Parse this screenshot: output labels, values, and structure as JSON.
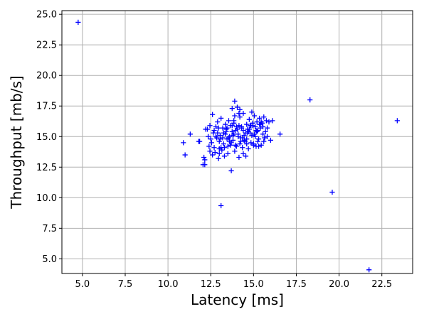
{
  "chart_data": {
    "type": "scatter",
    "title": "",
    "xlabel": "Latency [ms]",
    "ylabel": "Throughput [mb/s]",
    "xlim": [
      3.8,
      24.3
    ],
    "ylim": [
      3.8,
      25.3
    ],
    "xticks": [
      5.0,
      7.5,
      10.0,
      12.5,
      15.0,
      17.5,
      20.0,
      22.5
    ],
    "xtick_labels": [
      "5.0",
      "7.5",
      "10.0",
      "12.5",
      "15.0",
      "17.5",
      "20.0",
      "22.5"
    ],
    "yticks": [
      5.0,
      7.5,
      10.0,
      12.5,
      15.0,
      17.5,
      20.0,
      22.5,
      25.0
    ],
    "ytick_labels": [
      "5.0",
      "7.5",
      "10.0",
      "12.5",
      "15.0",
      "17.5",
      "20.0",
      "22.5",
      "25.0"
    ],
    "grid": true,
    "marker": "+",
    "color": "#0000ff",
    "x": [
      4.75,
      18.3,
      19.6,
      21.75,
      23.4,
      13.1,
      10.9,
      11.0,
      11.3,
      11.8,
      12.1,
      12.15,
      12.3,
      12.4,
      12.45,
      12.6,
      12.65,
      12.7,
      12.75,
      12.8,
      12.85,
      12.9,
      12.95,
      13.0,
      13.05,
      13.1,
      13.15,
      13.2,
      13.25,
      13.3,
      13.35,
      13.4,
      13.45,
      13.5,
      13.55,
      13.6,
      13.65,
      13.7,
      13.75,
      13.8,
      13.85,
      13.9,
      13.95,
      14.0,
      14.05,
      14.1,
      14.15,
      14.2,
      14.25,
      14.3,
      14.35,
      14.4,
      14.45,
      14.5,
      14.55,
      14.6,
      14.65,
      14.7,
      14.75,
      14.8,
      14.85,
      14.9,
      14.95,
      15.0,
      15.05,
      15.1,
      15.15,
      15.2,
      15.25,
      15.3,
      15.35,
      15.4,
      15.45,
      15.5,
      15.55,
      15.6,
      15.65,
      15.7,
      15.75,
      15.8,
      15.9,
      16.0,
      16.1,
      16.55,
      12.35,
      12.55,
      12.9,
      13.0,
      13.2,
      13.4,
      13.6,
      13.8,
      14.0,
      14.2,
      14.4,
      14.6,
      14.8,
      15.0,
      15.2,
      15.4,
      15.6,
      15.8,
      12.7,
      13.05,
      13.35,
      13.7,
      14.05,
      14.35,
      14.65,
      14.95,
      15.25,
      15.55,
      12.5,
      12.8,
      13.1,
      13.45,
      13.75,
      14.15,
      14.45,
      14.75,
      15.05,
      15.35,
      15.65,
      12.45,
      13.25,
      13.55,
      13.85,
      14.25,
      14.55,
      14.85,
      15.15,
      15.45,
      13.0,
      13.3,
      13.65,
      13.95,
      14.3,
      14.6,
      14.9,
      15.3,
      12.6,
      12.95,
      13.5,
      14.1,
      14.7,
      15.1,
      13.9,
      14.4,
      13.75,
      12.2,
      12.15,
      11.85,
      12.05,
      13.9,
      14.2,
      14.15,
      13.85
    ],
    "y": [
      24.35,
      18.0,
      10.45,
      4.1,
      16.3,
      9.35,
      14.5,
      13.5,
      15.2,
      14.6,
      13.3,
      12.7,
      15.6,
      14.2,
      13.8,
      16.8,
      15.3,
      14.1,
      13.7,
      15.8,
      14.9,
      16.2,
      13.2,
      14.6,
      15.1,
      16.5,
      13.9,
      15.7,
      14.4,
      13.4,
      16.0,
      15.4,
      14.8,
      13.6,
      16.3,
      15.0,
      14.3,
      12.2,
      15.9,
      14.7,
      16.1,
      13.8,
      15.5,
      14.2,
      17.4,
      15.2,
      13.3,
      16.6,
      14.9,
      15.8,
      14.1,
      16.9,
      15.1,
      14.6,
      13.4,
      16.0,
      15.6,
      14.0,
      16.4,
      15.3,
      14.5,
      17.0,
      15.9,
      14.4,
      16.7,
      15.0,
      14.2,
      16.2,
      15.5,
      14.8,
      16.5,
      15.7,
      14.3,
      16.1,
      15.2,
      16.6,
      14.9,
      15.4,
      16.3,
      15.0,
      16.2,
      14.7,
      16.3,
      15.2,
      15.0,
      14.5,
      15.3,
      14.0,
      14.9,
      15.6,
      14.6,
      15.1,
      15.8,
      14.4,
      15.5,
      14.8,
      15.9,
      14.3,
      15.4,
      16.0,
      14.6,
      15.7,
      15.5,
      14.8,
      15.2,
      14.5,
      15.6,
      14.9,
      15.3,
      16.1,
      14.6,
      15.8,
      14.8,
      15.0,
      14.1,
      15.7,
      15.4,
      15.9,
      14.7,
      15.6,
      15.2,
      16.0,
      14.9,
      15.9,
      15.3,
      14.9,
      15.2,
      14.6,
      15.3,
      15.9,
      15.5,
      16.2,
      13.6,
      14.1,
      15.9,
      14.3,
      15.7,
      14.4,
      15.1,
      14.2,
      13.5,
      15.7,
      14.2,
      15.0,
      15.4,
      15.8,
      16.7,
      13.6,
      17.3,
      15.6,
      13.1,
      14.6,
      12.7,
      17.9,
      17.2,
      16.9,
      16.3
    ]
  }
}
